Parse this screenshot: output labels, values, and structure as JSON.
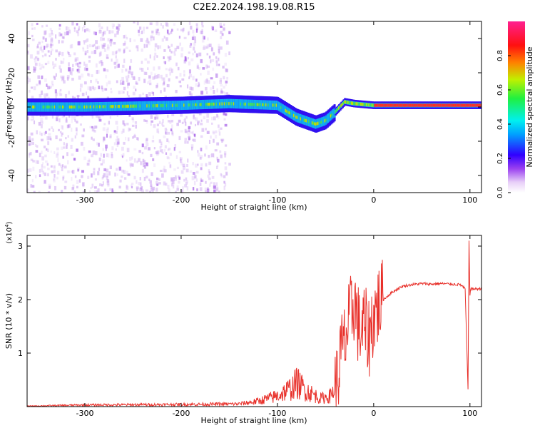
{
  "title": "C2E2.2024.198.19.08.R15",
  "chart_data": [
    {
      "type": "heatmap",
      "xlabel": "Height of straight line (km)",
      "ylabel": "Frequency (Hz)",
      "xlim": [
        -360,
        112
      ],
      "ylim": [
        -50,
        50
      ],
      "xticks": [
        -300,
        -200,
        -100,
        0,
        100
      ],
      "yticks": [
        -40,
        -20,
        0,
        20,
        40
      ],
      "colorbar": {
        "label": "Normalized spectral amplitude",
        "range": [
          0,
          1
        ],
        "ticks": [
          0.0,
          0.2,
          0.4,
          0.6,
          0.8
        ]
      },
      "ridge": {
        "description_points_height_km": [
          -360,
          -300,
          -200,
          -150,
          -100,
          -80,
          -60,
          -50,
          -40,
          -30,
          -20,
          0,
          50,
          100,
          112
        ],
        "frequency_hz": [
          0,
          0,
          1,
          2,
          1,
          -6,
          -10,
          -8,
          -3,
          3,
          2,
          1,
          1,
          1,
          1
        ]
      }
    },
    {
      "type": "line",
      "xlabel": "Height of straight line (km)",
      "ylabel": "SNR (10 * v/v)",
      "y_exponent_label": "(x10",
      "y_exponent_power": "4",
      "y_exponent_close": ")",
      "xlim": [
        -360,
        112
      ],
      "ylim": [
        0,
        3.2
      ],
      "xticks": [
        -300,
        -200,
        -100,
        0,
        100
      ],
      "yticks": [
        1,
        2,
        3
      ],
      "series": [
        {
          "name": "SNR",
          "color": "#e8302a",
          "x": [
            -360,
            -300,
            -200,
            -140,
            -120,
            -100,
            -85,
            -80,
            -70,
            -55,
            -45,
            -38,
            -35,
            -30,
            -25,
            -20,
            -15,
            -10,
            -5,
            0,
            5,
            10,
            20,
            30,
            40,
            50,
            60,
            70,
            80,
            90,
            95,
            98,
            99,
            100,
            101,
            105,
            112
          ],
          "y": [
            0.01,
            0.03,
            0.04,
            0.05,
            0.1,
            0.2,
            0.35,
            0.45,
            0.3,
            0.15,
            0.2,
            0.4,
            0.9,
            1.2,
            1.6,
            2.0,
            1.4,
            1.5,
            1.3,
            1.7,
            1.9,
            2.0,
            2.15,
            2.25,
            2.28,
            2.3,
            2.29,
            2.3,
            2.29,
            2.28,
            2.2,
            0.3,
            3.1,
            2.1,
            2.2,
            2.2,
            2.2
          ]
        }
      ]
    }
  ]
}
